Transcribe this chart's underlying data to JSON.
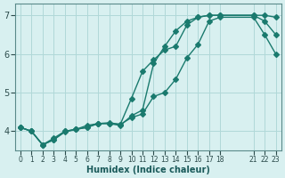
{
  "xlabel": "Humidex (Indice chaleur)",
  "ylabel": "",
  "bg_color": "#d8f0f0",
  "line_color": "#1a7a6e",
  "grid_color": "#b0d8d8",
  "line1_x": [
    0,
    1,
    2,
    3,
    4,
    5,
    6,
    7,
    8,
    9,
    10,
    11,
    12,
    13,
    14,
    15,
    16,
    17,
    18,
    21,
    22,
    23
  ],
  "line1_y": [
    4.1,
    4.0,
    3.65,
    3.78,
    4.0,
    4.05,
    4.1,
    4.2,
    4.2,
    4.15,
    4.4,
    4.55,
    5.75,
    6.2,
    6.6,
    6.85,
    6.95,
    7.0,
    7.0,
    7.0,
    6.85,
    6.5
  ],
  "line2_x": [
    0,
    1,
    2,
    3,
    4,
    5,
    6,
    7,
    8,
    9,
    10,
    11,
    12,
    13,
    14,
    15,
    16,
    17,
    18,
    21,
    22,
    23
  ],
  "line2_y": [
    4.1,
    4.0,
    3.65,
    3.82,
    4.0,
    4.05,
    4.15,
    4.2,
    4.22,
    4.18,
    4.85,
    5.55,
    5.85,
    6.1,
    6.2,
    6.75,
    6.95,
    7.0,
    7.0,
    7.0,
    7.0,
    6.95
  ],
  "line3_x": [
    0,
    1,
    2,
    3,
    4,
    5,
    6,
    7,
    8,
    9,
    10,
    11,
    12,
    13,
    14,
    15,
    16,
    17,
    18,
    21,
    22,
    23
  ],
  "line3_y": [
    4.1,
    4.0,
    3.65,
    3.78,
    3.98,
    4.05,
    4.1,
    4.2,
    4.2,
    4.18,
    4.35,
    4.45,
    4.9,
    5.0,
    5.35,
    5.9,
    6.25,
    6.85,
    6.95,
    6.95,
    6.5,
    6.0
  ],
  "ylim": [
    3.5,
    7.3
  ],
  "yticks": [
    4,
    5,
    6,
    7
  ],
  "xtick_positions": [
    0,
    1,
    2,
    3,
    4,
    5,
    6,
    7,
    8,
    9,
    10,
    11,
    12,
    13,
    14,
    15,
    16,
    17,
    18,
    21,
    22,
    23
  ],
  "xtick_labels": [
    "0",
    "1",
    "2",
    "3",
    "4",
    "5",
    "6",
    "7",
    "8",
    "9",
    "10",
    "11",
    "12",
    "13",
    "14",
    "15",
    "16",
    "17",
    "18",
    "21",
    "22",
    "23"
  ],
  "marker_size": 3,
  "tick_color": "#2a4a4a",
  "xlabel_color": "#1a5a5a"
}
